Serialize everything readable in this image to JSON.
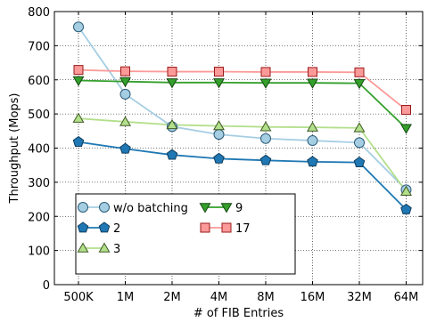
{
  "chart_data": {
    "type": "line",
    "title": "",
    "xlabel": "# of FIB Entries",
    "ylabel": "Throughput (Mops)",
    "categories": [
      "500K",
      "1M",
      "2M",
      "4M",
      "8M",
      "16M",
      "32M",
      "64M"
    ],
    "ylim": [
      0,
      800
    ],
    "yticks": [
      0,
      100,
      200,
      300,
      400,
      500,
      600,
      700,
      800
    ],
    "grid": true,
    "legend_position": "lower-left",
    "series": [
      {
        "name": "w/o batching",
        "color": "#a6cee3",
        "line_color": "#a6cee3",
        "edge": "#2a5a78",
        "marker": "circle",
        "values": [
          755,
          558,
          463,
          440,
          428,
          422,
          416,
          278
        ]
      },
      {
        "name": "2",
        "color": "#1f78b4",
        "line_color": "#1f78b4",
        "edge": "#0f3c5c",
        "marker": "pentagon",
        "values": [
          418,
          398,
          380,
          369,
          364,
          360,
          358,
          220
        ]
      },
      {
        "name": "3",
        "color": "#b2df8a",
        "line_color": "#b2df8a",
        "edge": "#405a25",
        "marker": "triangle-up",
        "values": [
          487,
          477,
          468,
          465,
          462,
          461,
          459,
          273
        ]
      },
      {
        "name": "9",
        "color": "#33a02c",
        "line_color": "#33a02c",
        "edge": "#154812",
        "marker": "triangle-down",
        "values": [
          598,
          595,
          592,
          592,
          591,
          591,
          590,
          458
        ]
      },
      {
        "name": "17",
        "color": "#fb9a99",
        "line_color": "#fb9a99",
        "edge": "#9b1a1a",
        "marker": "square",
        "values": [
          629,
          625,
          624,
          624,
          623,
          623,
          622,
          512
        ]
      }
    ]
  }
}
